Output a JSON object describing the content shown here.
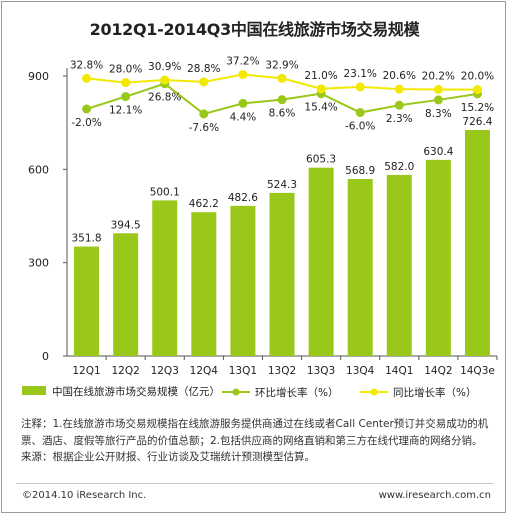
{
  "chart_data": {
    "type": "bar",
    "title": "2012Q1-2014Q3中国在线旅游市场交易规模",
    "categories": [
      "12Q1",
      "12Q2",
      "12Q3",
      "12Q4",
      "13Q1",
      "13Q2",
      "13Q3",
      "13Q4",
      "14Q1",
      "14Q2",
      "14Q3e"
    ],
    "ylim": [
      0,
      900
    ],
    "yticks": [
      "0",
      "300",
      "600",
      "900"
    ],
    "grid": false,
    "legend_position": "bottom",
    "series": [
      {
        "name": "中国在线旅游市场交易规模（亿元）",
        "kind": "bar",
        "color": "#9ac81a",
        "values": [
          351.8,
          394.5,
          500.1,
          462.2,
          482.6,
          524.3,
          605.3,
          568.9,
          582.0,
          630.4,
          726.4
        ],
        "labels": [
          "351.8",
          "394.5",
          "500.1",
          "462.2",
          "482.6",
          "524.3",
          "605.3",
          "568.9",
          "582.0",
          "630.4",
          "726.4"
        ]
      },
      {
        "name": "环比增长率（%）",
        "kind": "line",
        "color": "#9ac81a",
        "values": [
          -2.0,
          12.1,
          26.8,
          -7.6,
          4.4,
          8.6,
          15.4,
          -6.0,
          2.3,
          8.3,
          15.2
        ],
        "labels": [
          "-2.0%",
          "12.1%",
          "26.8%",
          "-7.6%",
          "4.4%",
          "8.6%",
          "15.4%",
          "-6.0%",
          "2.3%",
          "8.3%",
          "15.2%"
        ]
      },
      {
        "name": "同比增长率（%）",
        "kind": "line",
        "color": "#f2e800",
        "values": [
          32.8,
          28.0,
          30.9,
          28.8,
          37.2,
          32.9,
          21.0,
          23.1,
          20.6,
          20.2,
          20.0
        ],
        "labels": [
          "32.8%",
          "28.0%",
          "30.9%",
          "28.8%",
          "37.2%",
          "32.9%",
          "21.0%",
          "23.1%",
          "20.6%",
          "20.2%",
          "20.0%"
        ]
      }
    ]
  },
  "notes": {
    "line1": "注释：1.在线旅游市场交易规模指在线旅游服务提供商通过在线或者Call Center预订并交易成功的机",
    "line2": "票、酒店、度假等旅行产品的价值总额；2.包括供应商的网络直销和第三方在线代理商的网络分销。",
    "line3": "来源：根据企业公开财报、行业访谈及艾瑞统计预测模型估算。"
  },
  "footer": {
    "left": "©2014.10 iResearch Inc.",
    "right": "www.iresearch.com.cn"
  },
  "colors": {
    "bar": "#9ac81a",
    "mom_line": "#9ac81a",
    "yoy_line": "#f2e800",
    "axis": "#555555"
  }
}
